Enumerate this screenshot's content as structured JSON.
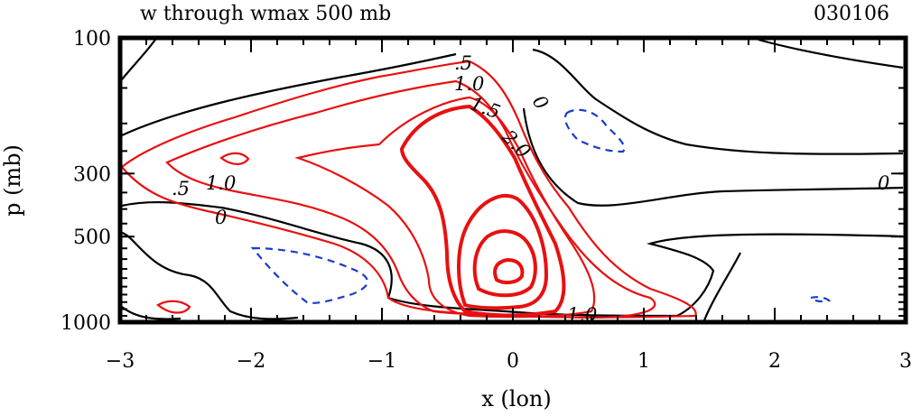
{
  "title": "w through wmax 500 mb",
  "date_label": "030106",
  "chart_data": {
    "type": "contour",
    "title": "w through wmax 500 mb",
    "xlabel": "x (lon)",
    "ylabel": "p (mb)",
    "xlim": [
      -3,
      3
    ],
    "ylim": [
      1000,
      100
    ],
    "y_scale": "log",
    "x_ticks": [
      -3,
      -2,
      -1,
      0,
      1,
      2,
      3
    ],
    "x_tick_labels": [
      "−3",
      "−2",
      "−1",
      "0",
      "1",
      "2",
      "3"
    ],
    "y_ticks": [
      100,
      300,
      500,
      1000
    ],
    "y_tick_labels": [
      "100",
      "300",
      "500",
      "1000"
    ],
    "contour_levels_positive": [
      0.5,
      1.0,
      1.5,
      2.0
    ],
    "contour_level_zero": 0,
    "contour_labels": [
      ".5",
      "1.0",
      "1.5",
      "2.0",
      "0",
      ".5",
      "1.0",
      "0",
      "0",
      "1.0"
    ],
    "colors": {
      "positive": "#e81010",
      "zero": "#000000",
      "negative": "#1a3ccc"
    }
  }
}
